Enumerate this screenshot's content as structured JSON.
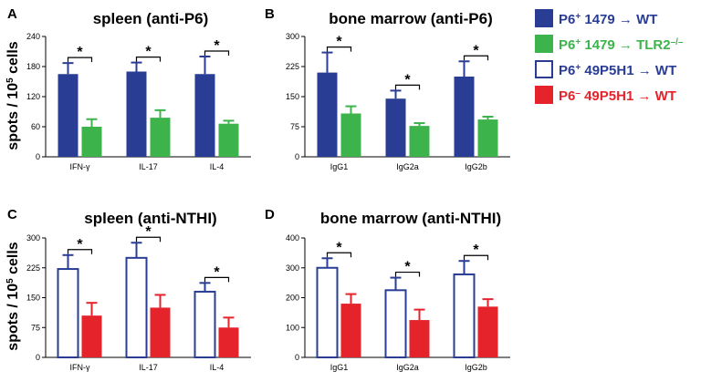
{
  "colors": {
    "blue": "#2a3d95",
    "green": "#3cb44b",
    "red": "#e5232b",
    "outline": "#2a3d95",
    "white": "#ffffff",
    "black": "#000000"
  },
  "ylabel_top": "spots / 10",
  "ylabel_sup": "5",
  "ylabel_end": " cells",
  "legend": [
    {
      "swatch": "blue",
      "filled": true,
      "pre": "P6",
      "sup": "+",
      "mid": " 1479 → WT",
      "sup2": ""
    },
    {
      "swatch": "green",
      "filled": true,
      "pre": "P6",
      "sup": "+",
      "mid": " 1479 → TLR2",
      "sup2": "–/–"
    },
    {
      "swatch": "outline",
      "filled": false,
      "pre": "P6",
      "sup": "+",
      "mid": " 49P5H1 → WT",
      "sup2": ""
    },
    {
      "swatch": "red",
      "filled": true,
      "pre": "P6",
      "sup": "–",
      "mid": " 49P5H1 → WT",
      "sup2": ""
    }
  ],
  "chart_data": [
    {
      "label": "A",
      "title": "spleen (anti-P6)",
      "type": "bar",
      "categories": [
        "IFN-γ",
        "IL-17",
        "IL-4"
      ],
      "ylim": [
        0,
        240
      ],
      "yticks": [
        0,
        60,
        120,
        180,
        240
      ],
      "series": [
        {
          "name": "P6+ 1479 → WT",
          "color": "blue",
          "filled": true,
          "values": [
            165,
            170,
            165
          ],
          "errors": [
            22,
            18,
            35
          ]
        },
        {
          "name": "P6+ 1479 → TLR2-/-",
          "color": "green",
          "filled": true,
          "values": [
            60,
            78,
            66
          ],
          "errors": [
            15,
            15,
            6
          ]
        }
      ],
      "significance": [
        "*",
        "*",
        "*"
      ]
    },
    {
      "label": "B",
      "title": "bone marrow (anti-P6)",
      "type": "bar",
      "categories": [
        "IgG1",
        "IgG2a",
        "IgG2b"
      ],
      "ylim": [
        0,
        300
      ],
      "yticks": [
        0,
        75,
        150,
        225,
        300
      ],
      "series": [
        {
          "name": "P6+ 1479 → WT",
          "color": "blue",
          "filled": true,
          "values": [
            210,
            145,
            200
          ],
          "errors": [
            50,
            20,
            38
          ]
        },
        {
          "name": "P6+ 1479 → TLR2-/-",
          "color": "green",
          "filled": true,
          "values": [
            108,
            77,
            93
          ],
          "errors": [
            18,
            7,
            7
          ]
        }
      ],
      "significance": [
        "*",
        "*",
        "*"
      ]
    },
    {
      "label": "C",
      "title": "spleen (anti-NTHI)",
      "type": "bar",
      "categories": [
        "IFN-γ",
        "IL-17",
        "IL-4"
      ],
      "ylim": [
        0,
        300
      ],
      "yticks": [
        0,
        75,
        150,
        225,
        300
      ],
      "series": [
        {
          "name": "P6+ 49P5H1 → WT",
          "color": "outline",
          "filled": false,
          "values": [
            222,
            250,
            165
          ],
          "errors": [
            35,
            38,
            22
          ]
        },
        {
          "name": "P6- 49P5H1 → WT",
          "color": "red",
          "filled": true,
          "values": [
            105,
            125,
            75
          ],
          "errors": [
            32,
            32,
            25
          ]
        }
      ],
      "significance": [
        "*",
        "*",
        "*"
      ]
    },
    {
      "label": "D",
      "title": "bone marrow (anti-NTHI)",
      "type": "bar",
      "categories": [
        "IgG1",
        "IgG2a",
        "IgG2b"
      ],
      "ylim": [
        0,
        400
      ],
      "yticks": [
        0,
        100,
        200,
        300,
        400
      ],
      "series": [
        {
          "name": "P6+ 49P5H1 → WT",
          "color": "outline",
          "filled": false,
          "values": [
            300,
            225,
            278
          ],
          "errors": [
            32,
            42,
            45
          ]
        },
        {
          "name": "P6- 49P5H1 → WT",
          "color": "red",
          "filled": true,
          "values": [
            180,
            125,
            170
          ],
          "errors": [
            32,
            35,
            25
          ]
        }
      ],
      "significance": [
        "*",
        "*",
        "*"
      ]
    }
  ]
}
